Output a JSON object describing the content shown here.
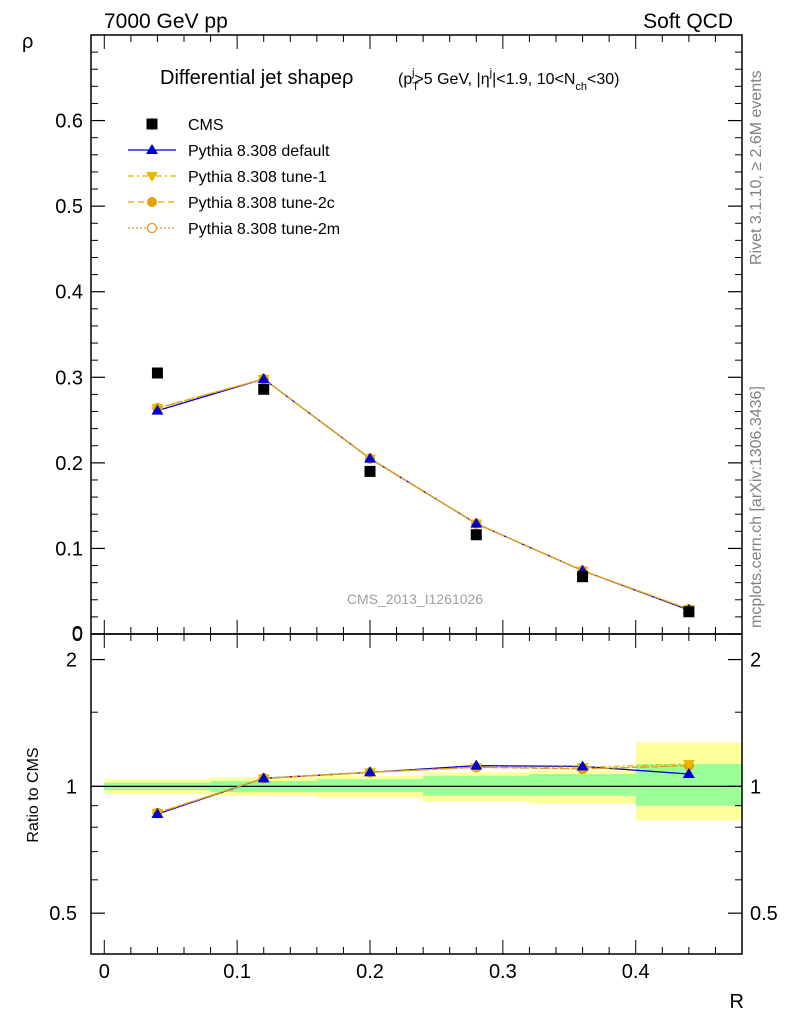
{
  "header": {
    "left": "7000 GeV pp",
    "right": "Soft QCD"
  },
  "side_labels": {
    "rivet": "Rivet 3.1.10, ≥ 2.6M events",
    "mcplots": "mcplots.cern.ch [arXiv:1306.3436]"
  },
  "watermark": "CMS_2013_I1261026",
  "colors": {
    "data": "#000000",
    "default": "#0000cc",
    "tune1": "#e8b800",
    "tune2c": "#e8a000",
    "tune2m": "#e89a20",
    "band_inner": "#99ff99",
    "band_outer": "#ffff99"
  },
  "chart_data": [
    {
      "type": "scatter",
      "panel": "main",
      "title_main": "Differential jet shapeρ",
      "title_cuts": "(p_T^j>5 GeV, |η^j|<1.9, 10<N_ch<30)",
      "ylabel": "ρ",
      "xlabel": "",
      "xlim": [
        -0.01,
        0.48
      ],
      "ylim": [
        0,
        0.7
      ],
      "yticks": [
        "0",
        "0.1",
        "0.2",
        "0.3",
        "0.4",
        "0.5",
        "0.6"
      ],
      "x": [
        0.04,
        0.12,
        0.2,
        0.28,
        0.36,
        0.44
      ],
      "series": [
        {
          "name": "CMS",
          "marker": "square",
          "values": [
            0.305,
            0.286,
            0.19,
            0.116,
            0.067,
            0.026
          ]
        },
        {
          "name": "Pythia 8.308 default",
          "marker": "triangle-up",
          "values": [
            0.261,
            0.298,
            0.205,
            0.129,
            0.074,
            0.028
          ]
        },
        {
          "name": "Pythia 8.308 tune-1",
          "marker": "triangle-down",
          "values": [
            0.264,
            0.298,
            0.205,
            0.129,
            0.074,
            0.029
          ]
        },
        {
          "name": "Pythia 8.308 tune-2c",
          "marker": "circle-filled",
          "values": [
            0.264,
            0.298,
            0.205,
            0.129,
            0.074,
            0.029
          ]
        },
        {
          "name": "Pythia 8.308 tune-2m",
          "marker": "circle-open",
          "values": [
            0.264,
            0.298,
            0.205,
            0.129,
            0.074,
            0.029
          ]
        }
      ],
      "legend": "top-left"
    },
    {
      "type": "line",
      "panel": "ratio",
      "ylabel": "Ratio to CMS",
      "xlabel": "R",
      "xlim": [
        -0.01,
        0.48
      ],
      "ylim": [
        0.4,
        2.3
      ],
      "xticks": [
        "0",
        "0.1",
        "0.2",
        "0.3",
        "0.4"
      ],
      "yticks": [
        "0.5",
        "1",
        "2"
      ],
      "scale": "log",
      "x": [
        0.04,
        0.12,
        0.2,
        0.28,
        0.36,
        0.44
      ],
      "bins": [
        [
          0.0,
          0.08
        ],
        [
          0.08,
          0.16
        ],
        [
          0.16,
          0.24
        ],
        [
          0.24,
          0.32
        ],
        [
          0.32,
          0.4
        ],
        [
          0.4,
          0.48
        ]
      ],
      "band_inner": [
        [
          0.98,
          1.02
        ],
        [
          0.97,
          1.03
        ],
        [
          0.97,
          1.04
        ],
        [
          0.95,
          1.06
        ],
        [
          0.95,
          1.07
        ],
        [
          0.9,
          1.13
        ]
      ],
      "band_outer": [
        [
          0.96,
          1.04
        ],
        [
          0.95,
          1.05
        ],
        [
          0.94,
          1.06
        ],
        [
          0.92,
          1.08
        ],
        [
          0.91,
          1.09
        ],
        [
          0.83,
          1.27
        ]
      ],
      "series": [
        {
          "name": "Pythia 8.308 default",
          "values": [
            0.86,
            1.045,
            1.08,
            1.12,
            1.115,
            1.07
          ]
        },
        {
          "name": "Pythia 8.308 tune-1",
          "values": [
            0.865,
            1.045,
            1.08,
            1.11,
            1.11,
            1.13
          ]
        },
        {
          "name": "Pythia 8.308 tune-2c",
          "values": [
            0.865,
            1.045,
            1.08,
            1.11,
            1.1,
            1.12
          ]
        },
        {
          "name": "Pythia 8.308 tune-2m",
          "values": [
            0.865,
            1.045,
            1.08,
            1.11,
            1.1,
            1.12
          ]
        }
      ]
    }
  ]
}
